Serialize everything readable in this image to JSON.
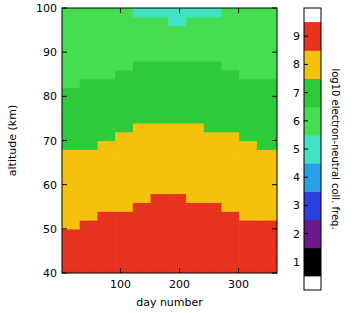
{
  "chart_data": {
    "type": "heatmap",
    "xlabel": "day number",
    "ylabel": "altitude (km)",
    "xlim": [
      1,
      365
    ],
    "ylim": [
      40,
      100
    ],
    "xticks": [
      100,
      200,
      300
    ],
    "yticks": [
      40,
      50,
      60,
      70,
      80,
      90,
      100
    ],
    "x_bins": [
      1,
      31,
      61,
      91,
      121,
      151,
      181,
      211,
      241,
      271,
      301,
      331,
      365
    ],
    "y_bins": [
      40,
      42,
      44,
      46,
      48,
      50,
      52,
      54,
      56,
      58,
      60,
      62,
      64,
      66,
      68,
      70,
      72,
      74,
      76,
      78,
      80,
      82,
      84,
      86,
      88,
      90,
      92,
      94,
      96,
      98,
      100
    ],
    "z": [
      [
        9,
        9,
        9,
        9,
        9,
        9,
        9,
        9,
        9,
        9,
        9,
        9
      ],
      [
        9,
        9,
        9,
        9,
        9,
        9,
        9,
        9,
        9,
        9,
        9,
        9
      ],
      [
        9,
        9,
        9,
        9,
        9,
        9,
        9,
        9,
        9,
        9,
        9,
        9
      ],
      [
        9,
        9,
        9,
        9,
        9,
        9,
        9,
        9,
        9,
        9,
        9,
        9
      ],
      [
        9,
        9,
        9,
        9,
        9,
        9,
        9,
        9,
        9,
        9,
        9,
        9
      ],
      [
        8,
        9,
        9,
        9,
        9,
        9,
        9,
        9,
        9,
        9,
        9,
        9
      ],
      [
        8,
        8,
        9,
        9,
        9,
        9,
        9,
        9,
        9,
        9,
        8,
        8
      ],
      [
        8,
        8,
        8,
        8,
        9,
        9,
        9,
        9,
        9,
        8,
        8,
        8
      ],
      [
        8,
        8,
        8,
        8,
        8,
        9,
        9,
        8,
        8,
        8,
        8,
        8
      ],
      [
        8,
        8,
        8,
        8,
        8,
        8,
        8,
        8,
        8,
        8,
        8,
        8
      ],
      [
        8,
        8,
        8,
        8,
        8,
        8,
        8,
        8,
        8,
        8,
        8,
        8
      ],
      [
        8,
        8,
        8,
        8,
        8,
        8,
        8,
        8,
        8,
        8,
        8,
        8
      ],
      [
        8,
        8,
        8,
        8,
        8,
        8,
        8,
        8,
        8,
        8,
        8,
        8
      ],
      [
        8,
        8,
        8,
        8,
        8,
        8,
        8,
        8,
        8,
        8,
        8,
        8
      ],
      [
        7,
        7,
        8,
        8,
        8,
        8,
        8,
        8,
        8,
        8,
        8,
        7
      ],
      [
        7,
        7,
        7,
        8,
        8,
        8,
        8,
        8,
        8,
        8,
        7,
        7
      ],
      [
        7,
        7,
        7,
        7,
        8,
        8,
        8,
        8,
        7,
        7,
        7,
        7
      ],
      [
        7,
        7,
        7,
        7,
        7,
        7,
        7,
        7,
        7,
        7,
        7,
        7
      ],
      [
        7,
        7,
        7,
        7,
        7,
        7,
        7,
        7,
        7,
        7,
        7,
        7
      ],
      [
        7,
        7,
        7,
        7,
        7,
        7,
        7,
        7,
        7,
        7,
        7,
        7
      ],
      [
        7,
        7,
        7,
        7,
        7,
        7,
        7,
        7,
        7,
        7,
        7,
        7
      ],
      [
        6,
        7,
        7,
        7,
        7,
        7,
        7,
        7,
        7,
        7,
        7,
        7
      ],
      [
        6,
        6,
        6,
        7,
        7,
        7,
        7,
        7,
        7,
        7,
        6,
        6
      ],
      [
        6,
        6,
        6,
        6,
        7,
        7,
        7,
        7,
        7,
        6,
        6,
        6
      ],
      [
        6,
        6,
        6,
        6,
        6,
        6,
        6,
        6,
        6,
        6,
        6,
        6
      ],
      [
        6,
        6,
        6,
        6,
        6,
        6,
        6,
        6,
        6,
        6,
        6,
        6
      ],
      [
        6,
        6,
        6,
        6,
        6,
        6,
        6,
        6,
        6,
        6,
        6,
        6
      ],
      [
        6,
        6,
        6,
        6,
        6,
        6,
        6,
        6,
        6,
        6,
        6,
        6
      ],
      [
        6,
        6,
        6,
        6,
        6,
        6,
        5,
        6,
        6,
        6,
        6,
        6
      ],
      [
        6,
        6,
        6,
        6,
        5,
        5,
        5,
        5,
        5,
        6,
        6,
        6
      ]
    ],
    "colorbar": {
      "label": "log10 electron-neutral coll. freq.",
      "range": [
        0,
        10
      ],
      "ticks": [
        1,
        2,
        3,
        4,
        5,
        6,
        7,
        8,
        9
      ],
      "colors": [
        "#000000",
        "#6a1a8c",
        "#2a3fe0",
        "#2a9fe8",
        "#3fe3c4",
        "#46dd50",
        "#2dca3a",
        "#f4c20d",
        "#e8321e"
      ]
    }
  }
}
